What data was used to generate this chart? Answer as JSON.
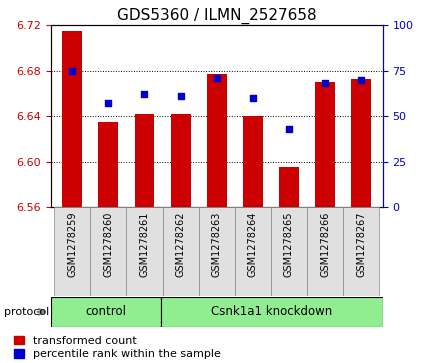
{
  "title": "GDS5360 / ILMN_2527658",
  "samples": [
    "GSM1278259",
    "GSM1278260",
    "GSM1278261",
    "GSM1278262",
    "GSM1278263",
    "GSM1278264",
    "GSM1278265",
    "GSM1278266",
    "GSM1278267"
  ],
  "transformed_counts": [
    6.715,
    6.635,
    6.642,
    6.642,
    6.677,
    6.64,
    6.595,
    6.67,
    6.673
  ],
  "percentile_ranks": [
    75,
    57,
    62,
    61,
    71,
    60,
    43,
    68,
    70
  ],
  "ylim_left": [
    6.56,
    6.72
  ],
  "ylim_right": [
    0,
    100
  ],
  "yticks_left": [
    6.56,
    6.6,
    6.64,
    6.68,
    6.72
  ],
  "yticks_right": [
    0,
    25,
    50,
    75,
    100
  ],
  "bar_color": "#cc0000",
  "dot_color": "#0000cc",
  "bar_bottom": 6.56,
  "plot_bg": "#ffffff",
  "n_control": 3,
  "n_knockdown": 6,
  "control_label": "control",
  "knockdown_label": "Csnk1a1 knockdown",
  "protocol_label": "protocol",
  "legend_bar_label": "transformed count",
  "legend_dot_label": "percentile rank within the sample",
  "group_color": "#90ee90",
  "ylabel_left_color": "#cc0000",
  "ylabel_right_color": "#0000cc",
  "title_fontsize": 11,
  "tick_fontsize": 8,
  "sample_fontsize": 7
}
